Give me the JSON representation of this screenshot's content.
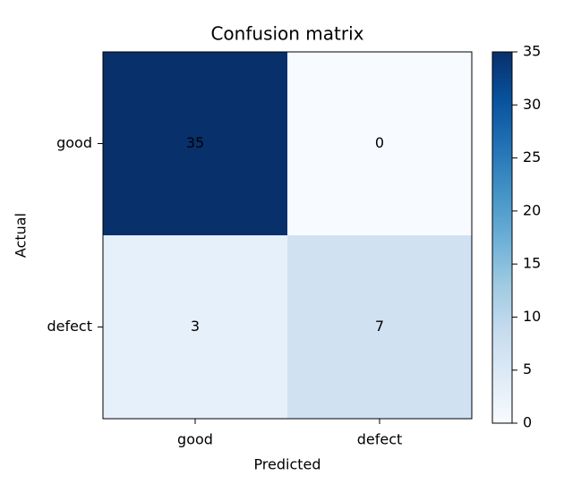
{
  "chart_data": {
    "type": "heatmap",
    "title": "Confusion matrix",
    "x_label": "Predicted",
    "y_label": "Actual",
    "x_categories": [
      "good",
      "defect"
    ],
    "y_categories": [
      "good",
      "defect"
    ],
    "values": [
      [
        35,
        0
      ],
      [
        3,
        7
      ]
    ],
    "colormap": "Blues",
    "clim": [
      0,
      35
    ],
    "cticks": [
      0,
      5,
      10,
      15,
      20,
      25,
      30,
      35
    ]
  }
}
